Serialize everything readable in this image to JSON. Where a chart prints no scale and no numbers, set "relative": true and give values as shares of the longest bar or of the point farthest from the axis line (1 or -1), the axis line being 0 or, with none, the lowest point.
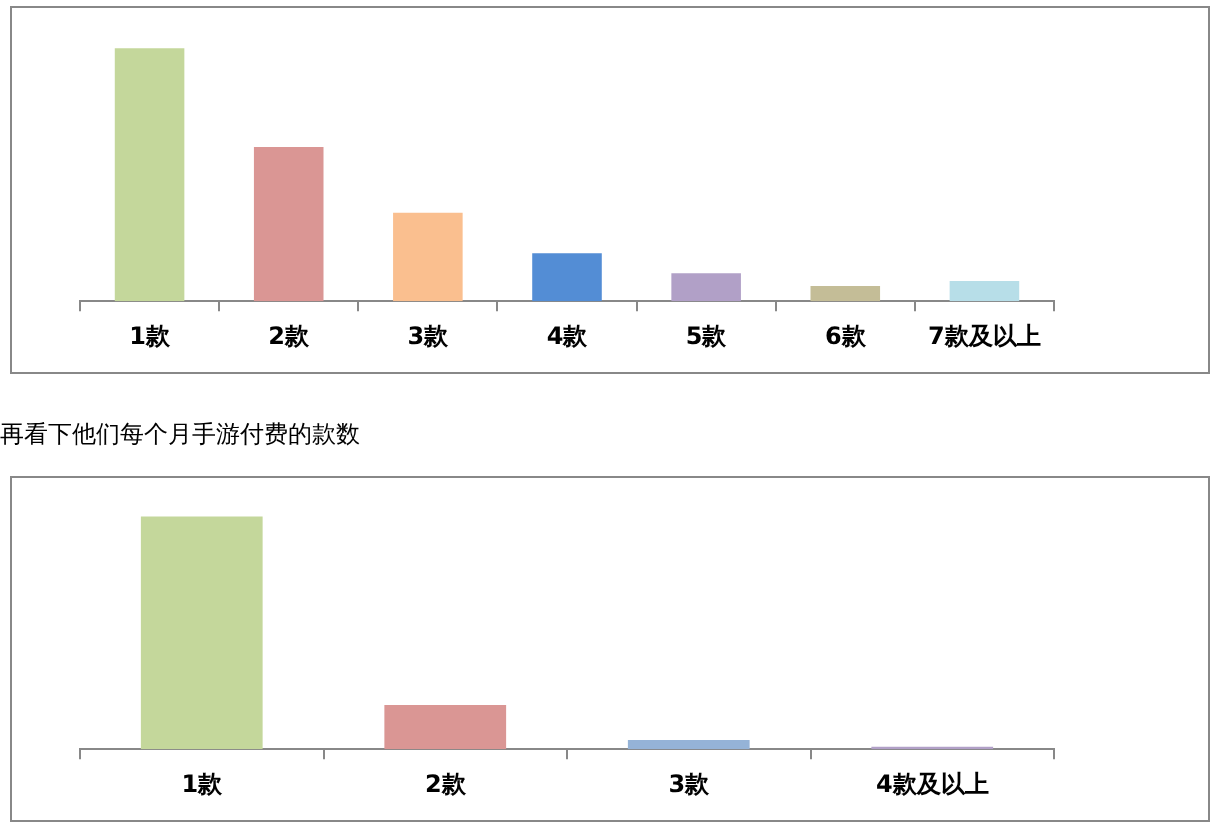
{
  "chart_data": [
    {
      "type": "bar",
      "relative": true,
      "categories": [
        "1款",
        "2款",
        "3款",
        "4款",
        "5款",
        "6款",
        "7款及以上"
      ],
      "values": [
        1,
        0.61,
        0.35,
        0.19,
        0.11,
        0.06,
        0.08
      ],
      "colors": [
        "#c4d79b",
        "#da9694",
        "#fabf8f",
        "#538dd5",
        "#b1a0c7",
        "#c4bd97",
        "#b7dee8"
      ]
    },
    {
      "type": "bar",
      "relative": true,
      "title": "再看下他们每个月手游付费的款数",
      "categories": [
        "1款",
        "2款",
        "3款",
        "4款及以上"
      ],
      "values": [
        1,
        0.19,
        0.04,
        0.01
      ],
      "colors": [
        "#c4d79b",
        "#da9694",
        "#95b3d7",
        "#b1a0c7"
      ]
    }
  ]
}
